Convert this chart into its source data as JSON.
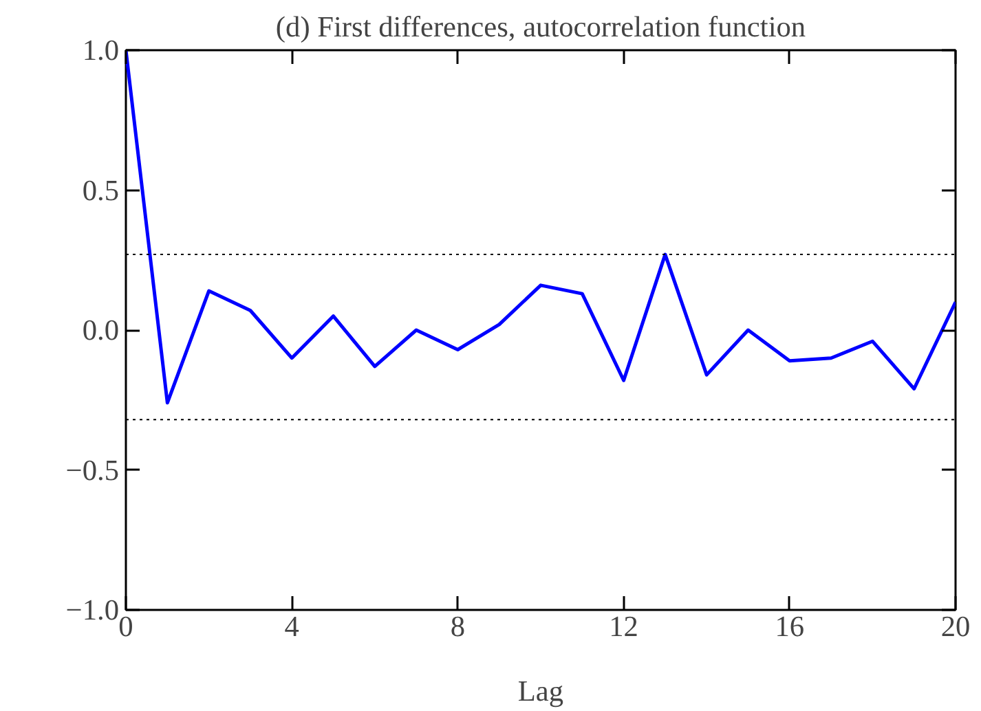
{
  "chart_data": {
    "type": "line",
    "title": "(d) First differences, autocorrelation function",
    "xlabel": "Lag",
    "x": [
      0,
      1,
      2,
      3,
      4,
      5,
      6,
      7,
      8,
      9,
      10,
      11,
      12,
      13,
      14,
      15,
      16,
      17,
      18,
      19,
      20
    ],
    "series": [
      {
        "color": "#0000ff",
        "values": [
          1.0,
          -0.26,
          0.14,
          0.07,
          -0.1,
          0.05,
          -0.13,
          0.0,
          -0.07,
          0.02,
          0.16,
          0.13,
          -0.18,
          0.27,
          -0.16,
          0.0,
          -0.11,
          -0.1,
          -0.04,
          -0.21,
          0.1
        ]
      }
    ],
    "xlim": [
      0,
      20
    ],
    "xticks": [
      0,
      4,
      8,
      12,
      16,
      20
    ],
    "ylim": [
      -1.0,
      1.0
    ],
    "yticks": [
      {
        "value": -1.0,
        "label": "−1.0"
      },
      {
        "value": -0.5,
        "label": "−0.5"
      },
      {
        "value": 0.0,
        "label": "0.0"
      },
      {
        "value": 0.5,
        "label": "0.5"
      },
      {
        "value": 1.0,
        "label": "1.0"
      }
    ],
    "ref_lines": [
      {
        "axis": "y",
        "value": 0.27,
        "color": "#000000",
        "line_style": "dotted"
      },
      {
        "axis": "y",
        "value": -0.32,
        "color": "#000000",
        "line_style": "dotted"
      }
    ],
    "grid": false,
    "marker": "none",
    "line_style": "solid"
  }
}
